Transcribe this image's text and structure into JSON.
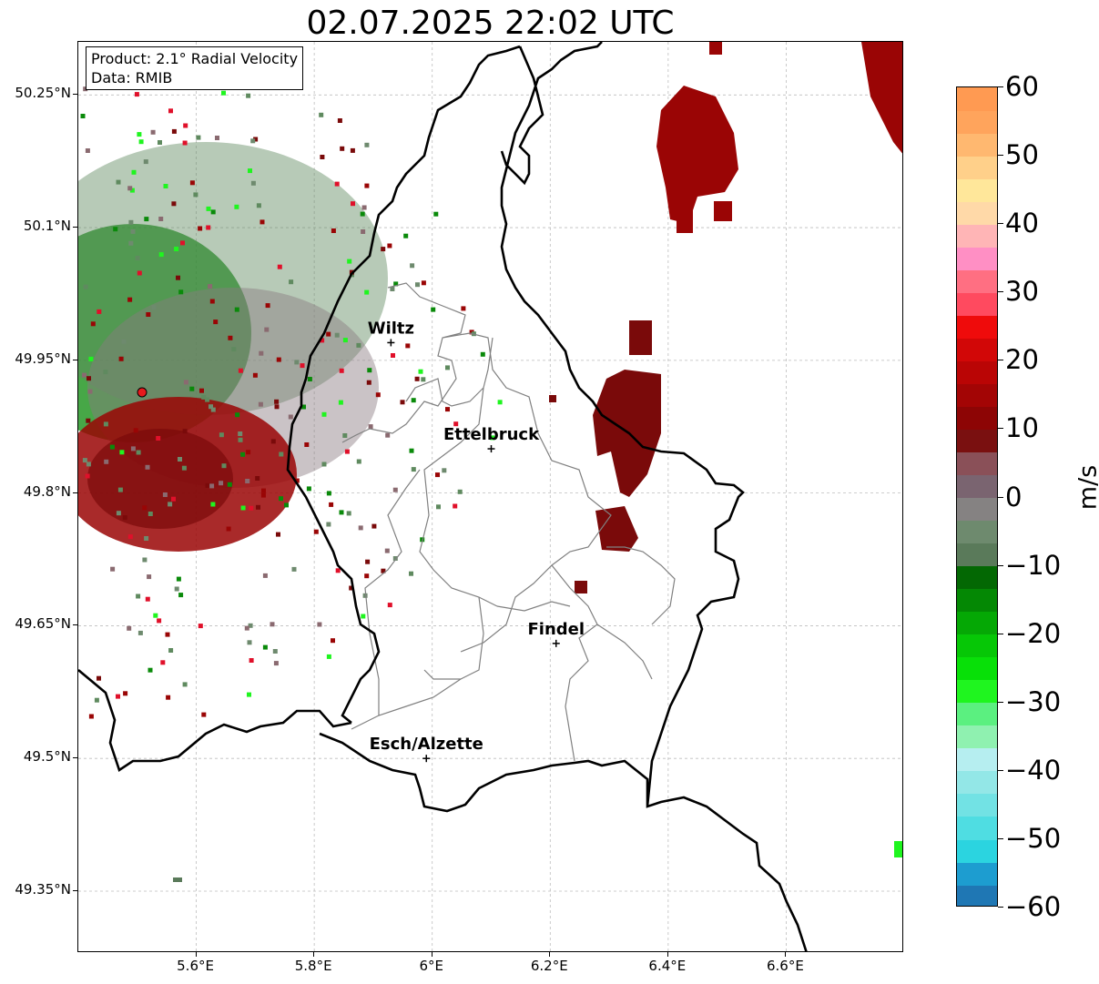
{
  "title": "02.07.2025 22:02 UTC",
  "info": {
    "product": "Product: 2.1° Radial Velocity",
    "data": "Data: RMIB"
  },
  "axes": {
    "lat_ticks": [
      "50.25°N",
      "50.1°N",
      "49.95°N",
      "49.8°N",
      "49.65°N",
      "49.5°N",
      "49.35°N"
    ],
    "lon_ticks": [
      "5.6°E",
      "5.8°E",
      "6°E",
      "6.2°E",
      "6.4°E",
      "6.6°E"
    ],
    "grid": true
  },
  "cities": [
    {
      "name": "Wiltz",
      "lon": 5.93,
      "lat": 49.97
    },
    {
      "name": "Ettelbruck",
      "lon": 6.1,
      "lat": 49.85
    },
    {
      "name": "Findel",
      "lon": 6.21,
      "lat": 49.63
    },
    {
      "name": "Esch/Alzette",
      "lon": 5.99,
      "lat": 49.5
    }
  ],
  "radar_site": {
    "name": "radar",
    "color": "#e8191c"
  },
  "colorbar": {
    "label": "m/s",
    "min": -60,
    "max": 60,
    "ticks": [
      "60",
      "50",
      "40",
      "30",
      "20",
      "10",
      "0",
      "−10",
      "−20",
      "−30",
      "−40",
      "−50",
      "−60"
    ],
    "colors": [
      "#1f77b4",
      "#1d9dd0",
      "#2bd4e0",
      "#4fdde2",
      "#72e2e4",
      "#93e7e7",
      "#b6eef0",
      "#8ff1b0",
      "#5bf080",
      "#1ff51f",
      "#08e008",
      "#06c706",
      "#05a805",
      "#048804",
      "#036803",
      "#5a7a5a",
      "#6e8a6e",
      "#858282",
      "#7a6470",
      "#8a5058",
      "#7a1010",
      "#8d0505",
      "#a30505",
      "#ba0505",
      "#d20707",
      "#ef0b0b",
      "#ff4a5f",
      "#ff6f82",
      "#ff8fc4",
      "#ffb5b6",
      "#ffd9a8",
      "#ffe79a",
      "#ffd08a",
      "#ffb870",
      "#ffa45c",
      "#ff9a52"
    ]
  }
}
